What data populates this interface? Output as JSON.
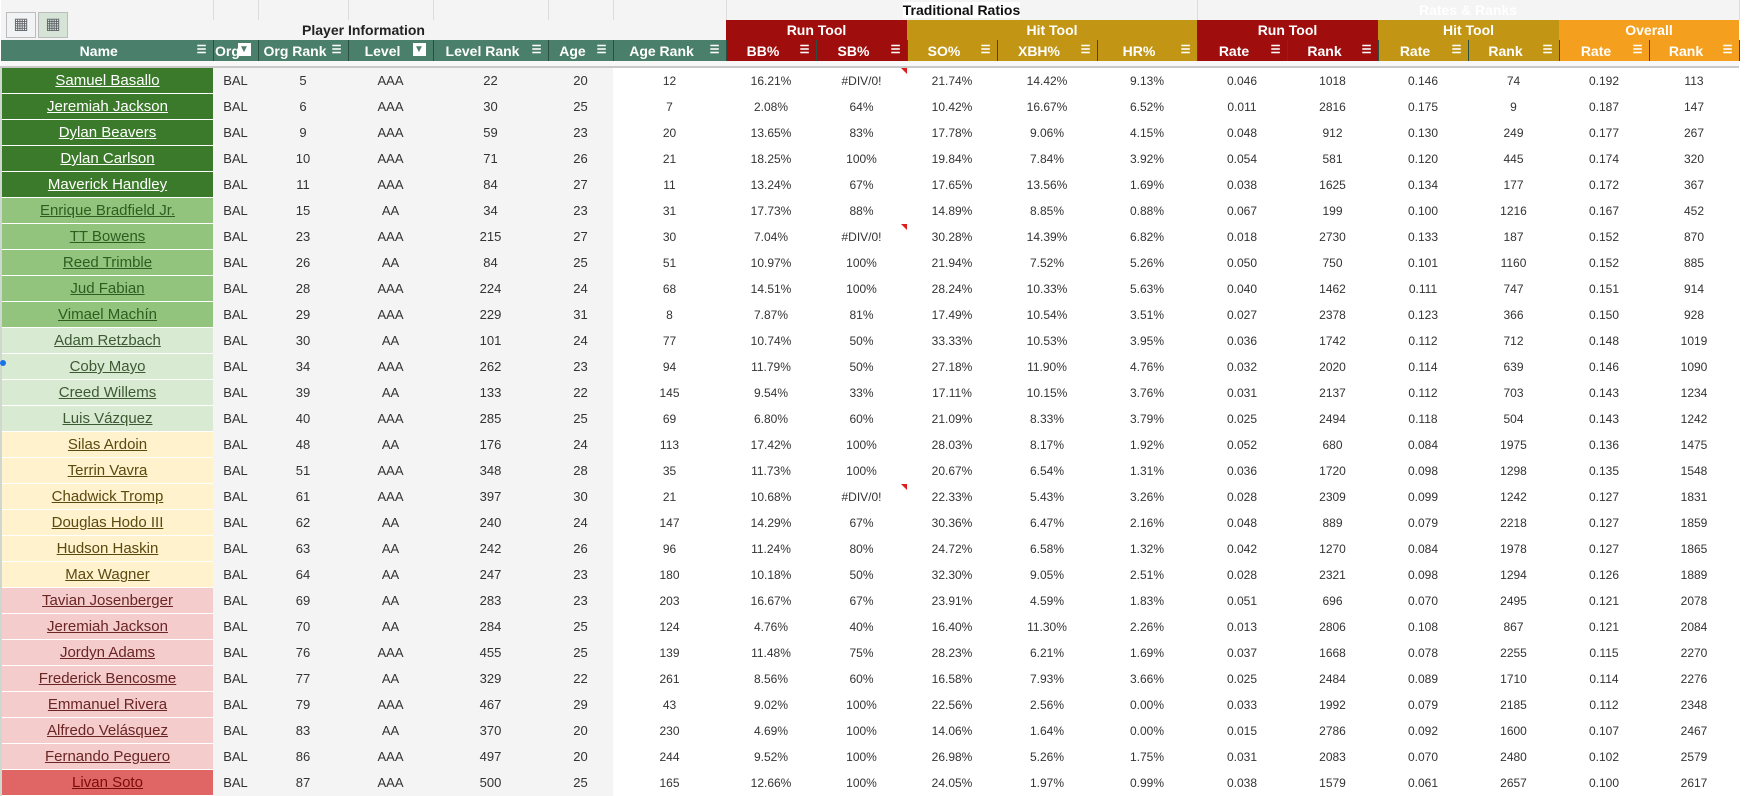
{
  "sheet": {
    "bands": {
      "player_information": "Player Information",
      "traditional_ratios": "Traditional Ratios",
      "rates_and_ranks": "Rates & Ranks"
    },
    "subgroups": {
      "run_tool_1": "Run Tool",
      "hit_tool_1": "Hit Tool",
      "run_tool_2": "Run Tool",
      "hit_tool_2": "Hit Tool",
      "overall": "Overall"
    },
    "headers": {
      "name": "Name",
      "org": "Org",
      "org_rank": "Org Rank",
      "level": "Level",
      "level_rank": "Level Rank",
      "age": "Age",
      "age_rank": "Age Rank",
      "bb": "BB%",
      "sb": "SB%",
      "so": "SO%",
      "xbh": "XBH%",
      "hr": "HR%",
      "run_rate": "Rate",
      "run_rank": "Rank",
      "hit_rate": "Rate",
      "hit_rank": "Rank",
      "overall_rate": "Rate",
      "overall_rank": "Rank"
    },
    "colors": {
      "header_green": "#4a7f6c",
      "run_red": "#a00d0d",
      "hit_gold": "#c29614",
      "overall_orange": "#f4a01e",
      "tier_1": "#3b7a2a",
      "tier_2": "#93c47d",
      "tier_3": "#d9ead3",
      "tier_4": "#fff2cc",
      "tier_5": "#f4cccc",
      "tier_6": "#e06666"
    },
    "rows": [
      {
        "tier": 1,
        "name": "Samuel Basallo",
        "org": "BAL",
        "org_rank": "5",
        "level": "AAA",
        "level_rank": "22",
        "age": "20",
        "age_rank": "12",
        "bb": "16.21%",
        "sb": "#DIV/0!",
        "so": "21.74%",
        "xbh": "14.42%",
        "hr": "9.13%",
        "run_rate": "0.046",
        "run_rank": "1018",
        "hit_rate": "0.146",
        "hit_rank": "74",
        "overall_rate": "0.192",
        "overall_rank": "113"
      },
      {
        "tier": 1,
        "name": "Jeremiah Jackson",
        "org": "BAL",
        "org_rank": "6",
        "level": "AAA",
        "level_rank": "30",
        "age": "25",
        "age_rank": "7",
        "bb": "2.08%",
        "sb": "64%",
        "so": "10.42%",
        "xbh": "16.67%",
        "hr": "6.52%",
        "run_rate": "0.011",
        "run_rank": "2816",
        "hit_rate": "0.175",
        "hit_rank": "9",
        "overall_rate": "0.187",
        "overall_rank": "147"
      },
      {
        "tier": 1,
        "name": "Dylan Beavers",
        "org": "BAL",
        "org_rank": "9",
        "level": "AAA",
        "level_rank": "59",
        "age": "23",
        "age_rank": "20",
        "bb": "13.65%",
        "sb": "83%",
        "so": "17.78%",
        "xbh": "9.06%",
        "hr": "4.15%",
        "run_rate": "0.048",
        "run_rank": "912",
        "hit_rate": "0.130",
        "hit_rank": "249",
        "overall_rate": "0.177",
        "overall_rank": "267"
      },
      {
        "tier": 1,
        "name": "Dylan Carlson",
        "org": "BAL",
        "org_rank": "10",
        "level": "AAA",
        "level_rank": "71",
        "age": "26",
        "age_rank": "21",
        "bb": "18.25%",
        "sb": "100%",
        "so": "19.84%",
        "xbh": "7.84%",
        "hr": "3.92%",
        "run_rate": "0.054",
        "run_rank": "581",
        "hit_rate": "0.120",
        "hit_rank": "445",
        "overall_rate": "0.174",
        "overall_rank": "320"
      },
      {
        "tier": 1,
        "name": "Maverick Handley",
        "org": "BAL",
        "org_rank": "11",
        "level": "AAA",
        "level_rank": "84",
        "age": "27",
        "age_rank": "11",
        "bb": "13.24%",
        "sb": "67%",
        "so": "17.65%",
        "xbh": "13.56%",
        "hr": "1.69%",
        "run_rate": "0.038",
        "run_rank": "1625",
        "hit_rate": "0.134",
        "hit_rank": "177",
        "overall_rate": "0.172",
        "overall_rank": "367"
      },
      {
        "tier": 2,
        "name": "Enrique Bradfield Jr.",
        "org": "BAL",
        "org_rank": "15",
        "level": "AA",
        "level_rank": "34",
        "age": "23",
        "age_rank": "31",
        "bb": "17.73%",
        "sb": "88%",
        "so": "14.89%",
        "xbh": "8.85%",
        "hr": "0.88%",
        "run_rate": "0.067",
        "run_rank": "199",
        "hit_rate": "0.100",
        "hit_rank": "1216",
        "overall_rate": "0.167",
        "overall_rank": "452"
      },
      {
        "tier": 2,
        "name": "TT Bowens",
        "org": "BAL",
        "org_rank": "23",
        "level": "AAA",
        "level_rank": "215",
        "age": "27",
        "age_rank": "30",
        "bb": "7.04%",
        "sb": "#DIV/0!",
        "so": "30.28%",
        "xbh": "14.39%",
        "hr": "6.82%",
        "run_rate": "0.018",
        "run_rank": "2730",
        "hit_rate": "0.133",
        "hit_rank": "187",
        "overall_rate": "0.152",
        "overall_rank": "870"
      },
      {
        "tier": 2,
        "name": "Reed Trimble",
        "org": "BAL",
        "org_rank": "26",
        "level": "AA",
        "level_rank": "84",
        "age": "25",
        "age_rank": "51",
        "bb": "10.97%",
        "sb": "100%",
        "so": "21.94%",
        "xbh": "7.52%",
        "hr": "5.26%",
        "run_rate": "0.050",
        "run_rank": "750",
        "hit_rate": "0.101",
        "hit_rank": "1160",
        "overall_rate": "0.152",
        "overall_rank": "885"
      },
      {
        "tier": 2,
        "name": "Jud Fabian",
        "org": "BAL",
        "org_rank": "28",
        "level": "AAA",
        "level_rank": "224",
        "age": "24",
        "age_rank": "68",
        "bb": "14.51%",
        "sb": "100%",
        "so": "28.24%",
        "xbh": "10.33%",
        "hr": "5.63%",
        "run_rate": "0.040",
        "run_rank": "1462",
        "hit_rate": "0.111",
        "hit_rank": "747",
        "overall_rate": "0.151",
        "overall_rank": "914"
      },
      {
        "tier": 2,
        "name": "Vimael Machín",
        "org": "BAL",
        "org_rank": "29",
        "level": "AAA",
        "level_rank": "229",
        "age": "31",
        "age_rank": "8",
        "bb": "7.87%",
        "sb": "81%",
        "so": "17.49%",
        "xbh": "10.54%",
        "hr": "3.51%",
        "run_rate": "0.027",
        "run_rank": "2378",
        "hit_rate": "0.123",
        "hit_rank": "366",
        "overall_rate": "0.150",
        "overall_rank": "928"
      },
      {
        "tier": 3,
        "name": "Adam Retzbach",
        "org": "BAL",
        "org_rank": "30",
        "level": "AA",
        "level_rank": "101",
        "age": "24",
        "age_rank": "77",
        "bb": "10.74%",
        "sb": "50%",
        "so": "33.33%",
        "xbh": "10.53%",
        "hr": "3.95%",
        "run_rate": "0.036",
        "run_rank": "1742",
        "hit_rate": "0.112",
        "hit_rank": "712",
        "overall_rate": "0.148",
        "overall_rank": "1019"
      },
      {
        "tier": 3,
        "name": "Coby Mayo",
        "org": "BAL",
        "org_rank": "34",
        "level": "AAA",
        "level_rank": "262",
        "age": "23",
        "age_rank": "94",
        "bb": "11.79%",
        "sb": "50%",
        "so": "27.18%",
        "xbh": "11.90%",
        "hr": "4.76%",
        "run_rate": "0.032",
        "run_rank": "2020",
        "hit_rate": "0.114",
        "hit_rank": "639",
        "overall_rate": "0.146",
        "overall_rank": "1090"
      },
      {
        "tier": 3,
        "name": "Creed Willems",
        "org": "BAL",
        "org_rank": "39",
        "level": "AA",
        "level_rank": "133",
        "age": "22",
        "age_rank": "145",
        "bb": "9.54%",
        "sb": "33%",
        "so": "17.11%",
        "xbh": "10.15%",
        "hr": "3.76%",
        "run_rate": "0.031",
        "run_rank": "2137",
        "hit_rate": "0.112",
        "hit_rank": "703",
        "overall_rate": "0.143",
        "overall_rank": "1234"
      },
      {
        "tier": 3,
        "name": "Luis Vázquez",
        "org": "BAL",
        "org_rank": "40",
        "level": "AAA",
        "level_rank": "285",
        "age": "25",
        "age_rank": "69",
        "bb": "6.80%",
        "sb": "60%",
        "so": "21.09%",
        "xbh": "8.33%",
        "hr": "3.79%",
        "run_rate": "0.025",
        "run_rank": "2494",
        "hit_rate": "0.118",
        "hit_rank": "504",
        "overall_rate": "0.143",
        "overall_rank": "1242"
      },
      {
        "tier": 4,
        "name": "Silas Ardoin",
        "org": "BAL",
        "org_rank": "48",
        "level": "AA",
        "level_rank": "176",
        "age": "24",
        "age_rank": "113",
        "bb": "17.42%",
        "sb": "100%",
        "so": "28.03%",
        "xbh": "8.17%",
        "hr": "1.92%",
        "run_rate": "0.052",
        "run_rank": "680",
        "hit_rate": "0.084",
        "hit_rank": "1975",
        "overall_rate": "0.136",
        "overall_rank": "1475"
      },
      {
        "tier": 4,
        "name": "Terrin Vavra",
        "org": "BAL",
        "org_rank": "51",
        "level": "AAA",
        "level_rank": "348",
        "age": "28",
        "age_rank": "35",
        "bb": "11.73%",
        "sb": "100%",
        "so": "20.67%",
        "xbh": "6.54%",
        "hr": "1.31%",
        "run_rate": "0.036",
        "run_rank": "1720",
        "hit_rate": "0.098",
        "hit_rank": "1298",
        "overall_rate": "0.135",
        "overall_rank": "1548"
      },
      {
        "tier": 4,
        "name": "Chadwick Tromp",
        "org": "BAL",
        "org_rank": "61",
        "level": "AAA",
        "level_rank": "397",
        "age": "30",
        "age_rank": "21",
        "bb": "10.68%",
        "sb": "#DIV/0!",
        "so": "22.33%",
        "xbh": "5.43%",
        "hr": "3.26%",
        "run_rate": "0.028",
        "run_rank": "2309",
        "hit_rate": "0.099",
        "hit_rank": "1242",
        "overall_rate": "0.127",
        "overall_rank": "1831"
      },
      {
        "tier": 4,
        "name": "Douglas Hodo III",
        "org": "BAL",
        "org_rank": "62",
        "level": "AA",
        "level_rank": "240",
        "age": "24",
        "age_rank": "147",
        "bb": "14.29%",
        "sb": "67%",
        "so": "30.36%",
        "xbh": "6.47%",
        "hr": "2.16%",
        "run_rate": "0.048",
        "run_rank": "889",
        "hit_rate": "0.079",
        "hit_rank": "2218",
        "overall_rate": "0.127",
        "overall_rank": "1859"
      },
      {
        "tier": 4,
        "name": "Hudson Haskin",
        "org": "BAL",
        "org_rank": "63",
        "level": "AA",
        "level_rank": "242",
        "age": "26",
        "age_rank": "96",
        "bb": "11.24%",
        "sb": "80%",
        "so": "24.72%",
        "xbh": "6.58%",
        "hr": "1.32%",
        "run_rate": "0.042",
        "run_rank": "1270",
        "hit_rate": "0.084",
        "hit_rank": "1978",
        "overall_rate": "0.127",
        "overall_rank": "1865"
      },
      {
        "tier": 4,
        "name": "Max Wagner",
        "org": "BAL",
        "org_rank": "64",
        "level": "AA",
        "level_rank": "247",
        "age": "23",
        "age_rank": "180",
        "bb": "10.18%",
        "sb": "50%",
        "so": "32.30%",
        "xbh": "9.05%",
        "hr": "2.51%",
        "run_rate": "0.028",
        "run_rank": "2321",
        "hit_rate": "0.098",
        "hit_rank": "1294",
        "overall_rate": "0.126",
        "overall_rank": "1889"
      },
      {
        "tier": 5,
        "name": "Tavian Josenberger",
        "org": "BAL",
        "org_rank": "69",
        "level": "AA",
        "level_rank": "283",
        "age": "23",
        "age_rank": "203",
        "bb": "16.67%",
        "sb": "67%",
        "so": "23.91%",
        "xbh": "4.59%",
        "hr": "1.83%",
        "run_rate": "0.051",
        "run_rank": "696",
        "hit_rate": "0.070",
        "hit_rank": "2495",
        "overall_rate": "0.121",
        "overall_rank": "2078"
      },
      {
        "tier": 5,
        "name": "Jeremiah Jackson",
        "org": "BAL",
        "org_rank": "70",
        "level": "AA",
        "level_rank": "284",
        "age": "25",
        "age_rank": "124",
        "bb": "4.76%",
        "sb": "40%",
        "so": "16.40%",
        "xbh": "11.30%",
        "hr": "2.26%",
        "run_rate": "0.013",
        "run_rank": "2806",
        "hit_rate": "0.108",
        "hit_rank": "867",
        "overall_rate": "0.121",
        "overall_rank": "2084"
      },
      {
        "tier": 5,
        "name": "Jordyn Adams",
        "org": "BAL",
        "org_rank": "76",
        "level": "AAA",
        "level_rank": "455",
        "age": "25",
        "age_rank": "139",
        "bb": "11.48%",
        "sb": "75%",
        "so": "28.23%",
        "xbh": "6.21%",
        "hr": "1.69%",
        "run_rate": "0.037",
        "run_rank": "1668",
        "hit_rate": "0.078",
        "hit_rank": "2255",
        "overall_rate": "0.115",
        "overall_rank": "2270"
      },
      {
        "tier": 5,
        "name": "Frederick Bencosme",
        "org": "BAL",
        "org_rank": "77",
        "level": "AA",
        "level_rank": "329",
        "age": "22",
        "age_rank": "261",
        "bb": "8.56%",
        "sb": "60%",
        "so": "16.58%",
        "xbh": "7.93%",
        "hr": "3.66%",
        "run_rate": "0.025",
        "run_rank": "2484",
        "hit_rate": "0.089",
        "hit_rank": "1710",
        "overall_rate": "0.114",
        "overall_rank": "2276"
      },
      {
        "tier": 5,
        "name": "Emmanuel Rivera",
        "org": "BAL",
        "org_rank": "79",
        "level": "AAA",
        "level_rank": "467",
        "age": "29",
        "age_rank": "43",
        "bb": "9.02%",
        "sb": "100%",
        "so": "22.56%",
        "xbh": "2.56%",
        "hr": "0.00%",
        "run_rate": "0.033",
        "run_rank": "1992",
        "hit_rate": "0.079",
        "hit_rank": "2185",
        "overall_rate": "0.112",
        "overall_rank": "2348"
      },
      {
        "tier": 5,
        "name": "Alfredo Velásquez",
        "org": "BAL",
        "org_rank": "83",
        "level": "AA",
        "level_rank": "370",
        "age": "20",
        "age_rank": "230",
        "bb": "4.69%",
        "sb": "100%",
        "so": "14.06%",
        "xbh": "1.64%",
        "hr": "0.00%",
        "run_rate": "0.015",
        "run_rank": "2786",
        "hit_rate": "0.092",
        "hit_rank": "1600",
        "overall_rate": "0.107",
        "overall_rank": "2467"
      },
      {
        "tier": 5,
        "name": "Fernando Peguero",
        "org": "BAL",
        "org_rank": "86",
        "level": "AAA",
        "level_rank": "497",
        "age": "20",
        "age_rank": "244",
        "bb": "9.52%",
        "sb": "100%",
        "so": "26.98%",
        "xbh": "5.26%",
        "hr": "1.75%",
        "run_rate": "0.031",
        "run_rank": "2083",
        "hit_rate": "0.070",
        "hit_rank": "2480",
        "overall_rate": "0.102",
        "overall_rank": "2579"
      },
      {
        "tier": 6,
        "name": "Livan Soto",
        "org": "BAL",
        "org_rank": "87",
        "level": "AAA",
        "level_rank": "500",
        "age": "25",
        "age_rank": "165",
        "bb": "12.66%",
        "sb": "100%",
        "so": "24.05%",
        "xbh": "1.97%",
        "hr": "0.99%",
        "run_rate": "0.038",
        "run_rank": "1579",
        "hit_rate": "0.061",
        "hit_rank": "2657",
        "overall_rate": "0.100",
        "overall_rank": "2617"
      }
    ]
  }
}
